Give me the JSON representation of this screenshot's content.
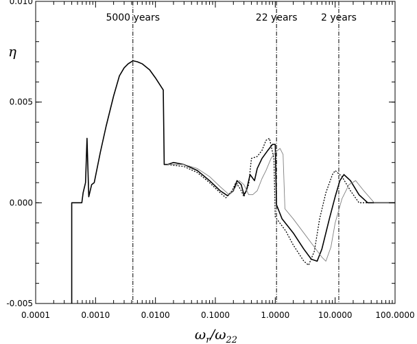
{
  "chart_data": {
    "type": "line",
    "xscale": "log",
    "xlim": [
      0.0001,
      100.0
    ],
    "ylim": [
      -0.005,
      0.01
    ],
    "xlabel": "ωr/ω22",
    "ylabel": "η",
    "grid": false,
    "x_ticks": [
      0.0001,
      0.001,
      0.01,
      0.1,
      1.0,
      10.0,
      100.0
    ],
    "x_tick_labels": [
      "0.0001",
      "0.0010",
      "0.0100",
      "0.1000",
      "1.0000",
      "10.0000",
      "100.0000"
    ],
    "y_ticks": [
      -0.005,
      0.0,
      0.005,
      0.01
    ],
    "y_tick_labels": [
      "-0.005",
      "0.000",
      "0.005",
      "0.010"
    ],
    "reference_lines": [
      {
        "x": 0.0042,
        "label": "5000 years"
      },
      {
        "x": 1.05,
        "label": "22 years"
      },
      {
        "x": 11.5,
        "label": "2 years"
      }
    ],
    "series": [
      {
        "style": "solid-thick",
        "color": "#000000",
        "points": [
          [
            0.0004,
            -0.005
          ],
          [
            0.0004,
            0.0
          ],
          [
            0.00059,
            0.0
          ],
          [
            0.00062,
            0.0005
          ],
          [
            0.00068,
            0.001
          ],
          [
            0.00072,
            0.0032
          ],
          [
            0.00077,
            0.0003
          ],
          [
            0.00086,
            0.0009
          ],
          [
            0.00095,
            0.001
          ],
          [
            0.0012,
            0.0025
          ],
          [
            0.0015,
            0.0038
          ],
          [
            0.002,
            0.0053
          ],
          [
            0.0025,
            0.0063
          ],
          [
            0.003,
            0.0067
          ],
          [
            0.0035,
            0.0069
          ],
          [
            0.0042,
            0.00705
          ],
          [
            0.005,
            0.007
          ],
          [
            0.006,
            0.0069
          ],
          [
            0.008,
            0.0066
          ],
          [
            0.01,
            0.0062
          ],
          [
            0.0135,
            0.0056
          ],
          [
            0.014,
            0.0019
          ],
          [
            0.016,
            0.0019
          ],
          [
            0.02,
            0.002
          ],
          [
            0.03,
            0.0019
          ],
          [
            0.05,
            0.0016
          ],
          [
            0.08,
            0.0011
          ],
          [
            0.12,
            0.0006
          ],
          [
            0.16,
            0.00035
          ],
          [
            0.2,
            0.0006
          ],
          [
            0.23,
            0.0011
          ],
          [
            0.27,
            0.0009
          ],
          [
            0.3,
            0.0004
          ],
          [
            0.33,
            0.0006
          ],
          [
            0.38,
            0.0014
          ],
          [
            0.45,
            0.0011
          ],
          [
            0.5,
            0.0017
          ],
          [
            0.6,
            0.0022
          ],
          [
            0.75,
            0.0026
          ],
          [
            0.9,
            0.0029
          ],
          [
            1.0,
            0.0029
          ],
          [
            1.05,
            -0.0001
          ],
          [
            1.3,
            -0.0008
          ],
          [
            2.0,
            -0.0015
          ],
          [
            3.0,
            -0.0023
          ],
          [
            4.0,
            -0.0028
          ],
          [
            5.0,
            -0.0029
          ],
          [
            6.0,
            -0.0023
          ],
          [
            8.0,
            -0.0008
          ],
          [
            10.0,
            0.0003
          ],
          [
            12.0,
            0.0011
          ],
          [
            14.0,
            0.0014
          ],
          [
            18.0,
            0.0011
          ],
          [
            25.0,
            0.0004
          ],
          [
            35.0,
            0.0
          ],
          [
            100.0,
            0.0
          ]
        ]
      },
      {
        "style": "dotted",
        "color": "#000000",
        "points": [
          [
            0.016,
            0.0019
          ],
          [
            0.03,
            0.0018
          ],
          [
            0.05,
            0.0015
          ],
          [
            0.08,
            0.001
          ],
          [
            0.12,
            0.0005
          ],
          [
            0.15,
            0.00025
          ],
          [
            0.19,
            0.0006
          ],
          [
            0.22,
            0.001
          ],
          [
            0.26,
            0.0007
          ],
          [
            0.3,
            0.0003
          ],
          [
            0.36,
            0.0009
          ],
          [
            0.4,
            0.0022
          ],
          [
            0.5,
            0.0023
          ],
          [
            0.6,
            0.0026
          ],
          [
            0.7,
            0.0031
          ],
          [
            0.8,
            0.0032
          ],
          [
            0.95,
            0.0022
          ],
          [
            1.0,
            -0.0007
          ],
          [
            1.5,
            -0.0014
          ],
          [
            2.0,
            -0.0021
          ],
          [
            3.0,
            -0.0029
          ],
          [
            3.6,
            -0.0031
          ],
          [
            4.5,
            -0.0024
          ],
          [
            5.5,
            -0.0008
          ],
          [
            7.0,
            0.0005
          ],
          [
            9.0,
            0.0014
          ],
          [
            10.0,
            0.0016
          ],
          [
            13.0,
            0.0013
          ],
          [
            18.0,
            0.0006
          ],
          [
            25.0,
            0.0
          ],
          [
            100.0,
            0.0
          ]
        ]
      },
      {
        "style": "solid-thin",
        "color": "#7f7f7f",
        "points": [
          [
            0.016,
            0.0019
          ],
          [
            0.03,
            0.0019
          ],
          [
            0.05,
            0.0017
          ],
          [
            0.08,
            0.0013
          ],
          [
            0.12,
            0.0008
          ],
          [
            0.17,
            0.0004
          ],
          [
            0.21,
            0.0007
          ],
          [
            0.25,
            0.0011
          ],
          [
            0.3,
            0.0009
          ],
          [
            0.36,
            0.0004
          ],
          [
            0.42,
            0.0004
          ],
          [
            0.5,
            0.0006
          ],
          [
            0.6,
            0.0012
          ],
          [
            0.7,
            0.0016
          ],
          [
            0.85,
            0.0022
          ],
          [
            1.0,
            0.0025
          ],
          [
            1.2,
            0.0027
          ],
          [
            1.35,
            0.0024
          ],
          [
            1.45,
            -0.0003
          ],
          [
            2.0,
            -0.0008
          ],
          [
            3.0,
            -0.0015
          ],
          [
            4.5,
            -0.0022
          ],
          [
            6.0,
            -0.0027
          ],
          [
            7.0,
            -0.0029
          ],
          [
            8.5,
            -0.0022
          ],
          [
            10.0,
            -0.001
          ],
          [
            13.0,
            0.0002
          ],
          [
            17.0,
            0.0009
          ],
          [
            22.0,
            0.0011
          ],
          [
            30.0,
            0.0006
          ],
          [
            45.0,
            0.0
          ],
          [
            100.0,
            0.0
          ]
        ]
      }
    ]
  }
}
